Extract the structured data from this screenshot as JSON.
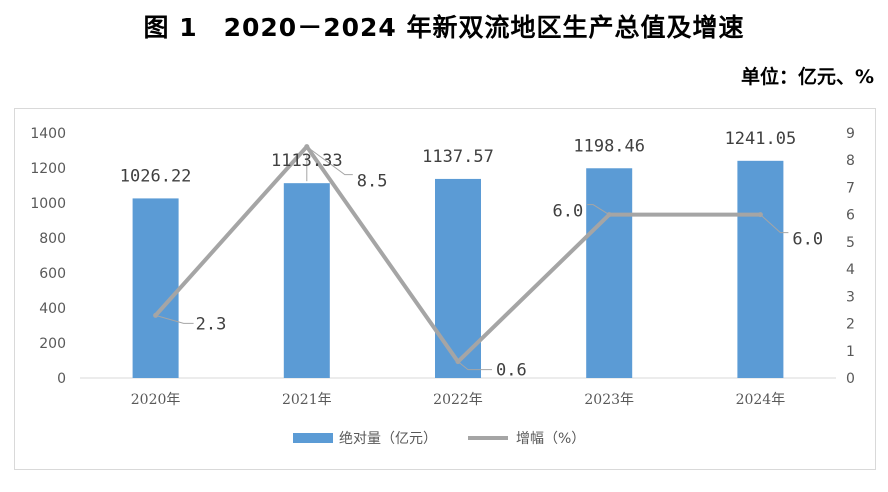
{
  "header": {
    "title": "图 1　2020－2024 年新双流地区生产总值及增速",
    "unit": "单位：亿元、%"
  },
  "colors": {
    "bar": "#5b9bd5",
    "line": "#a5a5a5",
    "leader": "#a5a5a5"
  },
  "chart_data": {
    "type": "bar",
    "title": "图 1　2020－2024 年新双流地区生产总值及增速",
    "categories": [
      "2020年",
      "2021年",
      "2022年",
      "2023年",
      "2024年"
    ],
    "series": [
      {
        "name": "绝对量（亿元）",
        "type": "bar",
        "axis": "left",
        "values": [
          1026.22,
          1113.33,
          1137.57,
          1198.46,
          1241.05
        ],
        "labels": [
          "1026.22",
          "1113.33",
          "1137.57",
          "1198.46",
          "1241.05"
        ]
      },
      {
        "name": "增幅（%）",
        "type": "line",
        "axis": "right",
        "values": [
          2.3,
          8.5,
          0.6,
          6.0,
          6.0
        ],
        "labels": [
          "2.3",
          "8.5",
          "0.6",
          "6.0",
          "6.0"
        ]
      }
    ],
    "y_left": {
      "min": 0,
      "max": 1400,
      "ticks": [
        "0",
        "200",
        "400",
        "600",
        "800",
        "1000",
        "1200",
        "1400"
      ]
    },
    "y_right": {
      "min": 0,
      "max": 9,
      "ticks": [
        "0",
        "1",
        "2",
        "3",
        "4",
        "5",
        "6",
        "7",
        "8",
        "9"
      ]
    },
    "grid": false,
    "legend_position": "bottom"
  }
}
